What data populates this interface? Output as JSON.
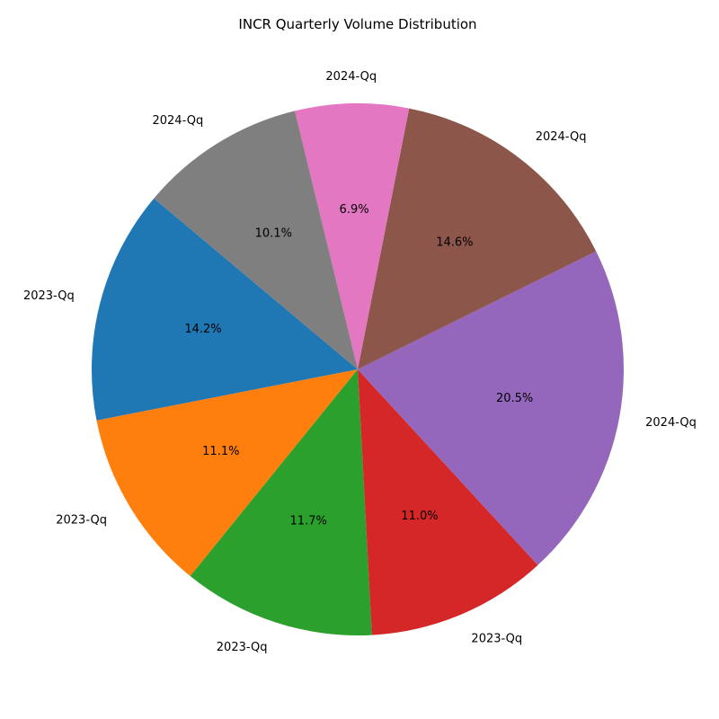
{
  "chart_data": {
    "type": "pie",
    "title": "INCR Quarterly Volume Distribution",
    "labels": [
      "2023-Qq",
      "2023-Qq",
      "2023-Qq",
      "2023-Qq",
      "2024-Qq",
      "2024-Qq",
      "2024-Qq",
      "2024-Qq"
    ],
    "values": [
      14.2,
      11.1,
      11.7,
      11.0,
      20.5,
      14.6,
      6.9,
      10.1
    ],
    "percent_labels": [
      "14.2%",
      "11.1%",
      "11.7%",
      "11.0%",
      "20.5%",
      "14.6%",
      "6.9%",
      "10.1%"
    ],
    "colors": [
      "#1f77b4",
      "#ff7f0e",
      "#2ca02c",
      "#d62728",
      "#9467bd",
      "#8c564b",
      "#e377c2",
      "#7f7f7f"
    ],
    "start_angle_deg": 140,
    "direction": "counterclockwise",
    "legend": "none"
  }
}
